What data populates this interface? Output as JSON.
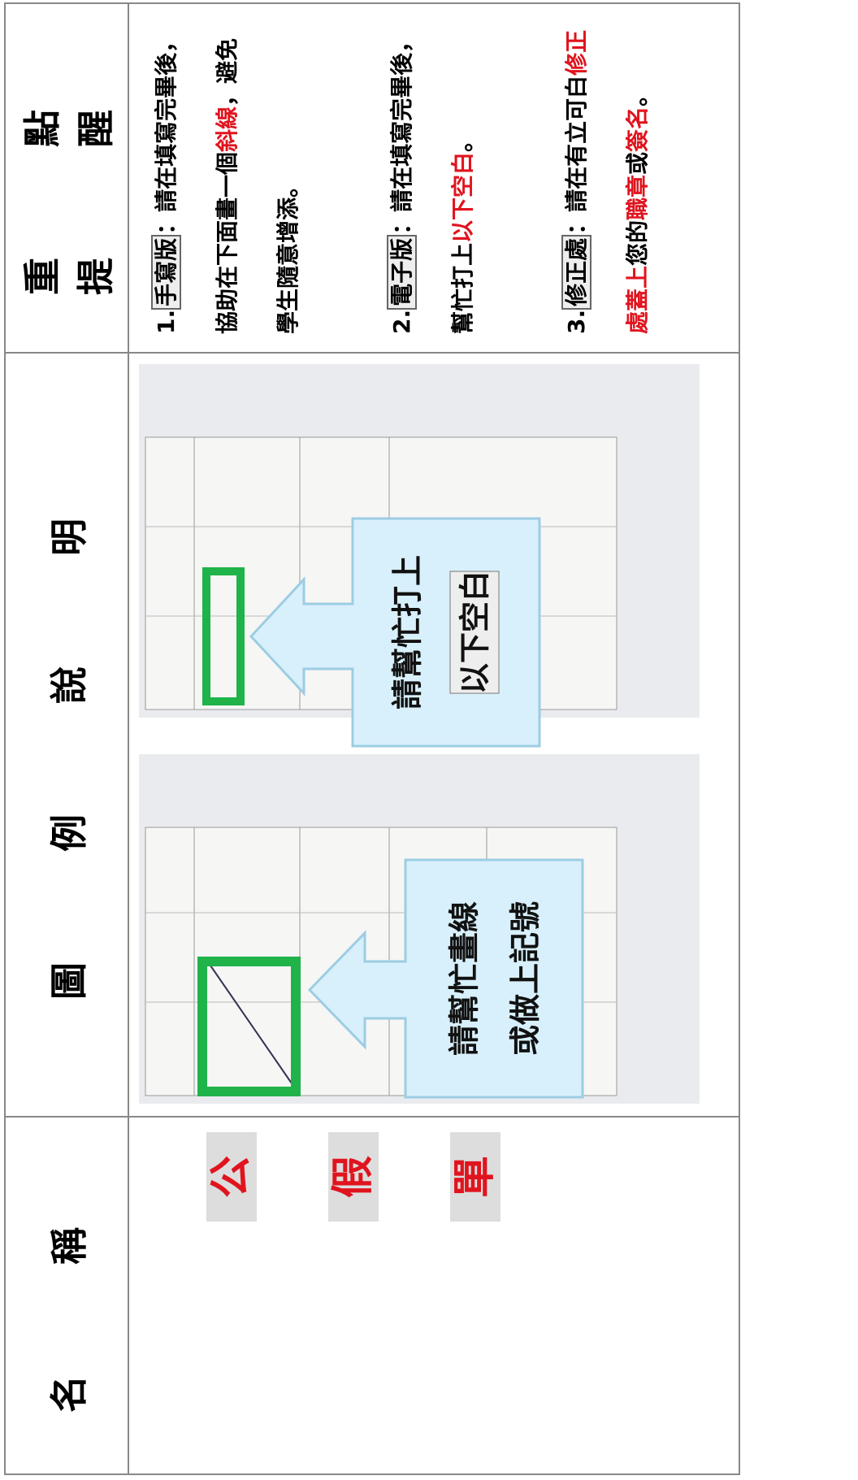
{
  "headers": [
    "名 稱",
    "圖 例 說 明",
    "重 點 提 醒"
  ],
  "name_chars": [
    "公",
    "假",
    "單"
  ],
  "callouts": [
    {
      "lines": [
        "請幫忙畫線",
        "或做上記號"
      ]
    },
    {
      "lines": [
        "請幫忙打上",
        "以下空白"
      ]
    }
  ],
  "notes": [
    [
      {
        "text": "1.",
        "style": "normal"
      },
      {
        "text": "手寫版",
        "style": "boxed"
      },
      {
        "text": "：請在填寫完畢後，協助在下面畫一個",
        "style": "normal"
      },
      {
        "text": "斜線",
        "style": "red"
      },
      {
        "text": "，避免學生隨意增添。",
        "style": "normal"
      }
    ],
    [
      {
        "text": "2.",
        "style": "normal"
      },
      {
        "text": "電子版",
        "style": "boxed"
      },
      {
        "text": "：請在填寫完畢後，幫忙打上",
        "style": "normal"
      },
      {
        "text": "以下空白",
        "style": "red"
      },
      {
        "text": "。",
        "style": "normal"
      }
    ],
    [
      {
        "text": "3.",
        "style": "normal"
      },
      {
        "text": "修正處",
        "style": "boxed"
      },
      {
        "text": "：請在有立可白",
        "style": "normal"
      },
      {
        "text": "修正處蓋上",
        "style": "red"
      },
      {
        "text": "您的",
        "style": "normal"
      },
      {
        "text": "職章",
        "style": "red"
      },
      {
        "text": "或",
        "style": "normal"
      },
      {
        "text": "簽名",
        "style": "red"
      },
      {
        "text": "。",
        "style": "normal"
      }
    ]
  ]
}
